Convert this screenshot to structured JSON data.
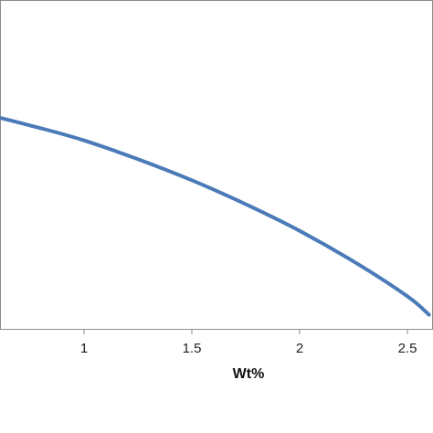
{
  "chart_data": {
    "type": "line",
    "title": "",
    "xlabel": "Wt%",
    "ylabel": "",
    "xlim": [
      0.5,
      2.6
    ],
    "ylim": [
      0,
      1
    ],
    "grid": false,
    "x_ticks": [
      {
        "value": 1,
        "label": "1"
      },
      {
        "value": 1.5,
        "label": "1.5"
      },
      {
        "value": 2,
        "label": "2"
      },
      {
        "value": 2.5,
        "label": "2.5"
      }
    ],
    "series": [
      {
        "color": "#4a7ab8",
        "x": [
          0.5,
          0.8,
          1.0,
          1.25,
          1.5,
          1.75,
          2.0,
          2.25,
          2.5,
          2.6
        ],
        "y": [
          0.66,
          0.61,
          0.573,
          0.516,
          0.452,
          0.379,
          0.298,
          0.205,
          0.099,
          0.043
        ]
      }
    ]
  }
}
